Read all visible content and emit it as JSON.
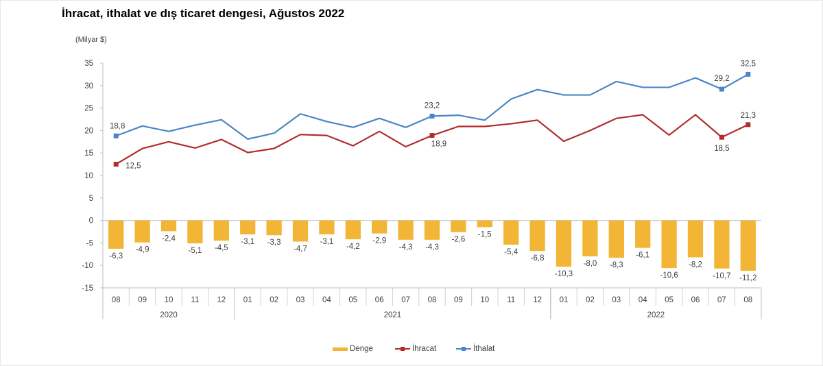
{
  "title": "İhracat, ithalat ve dış ticaret dengesi, Ağustos 2022",
  "chart_data": {
    "type": "bar+line",
    "ylabel": "(Milyar $)",
    "ylim": [
      -15,
      35
    ],
    "yticks": [
      35,
      30,
      25,
      20,
      15,
      10,
      5,
      0,
      -5,
      -10,
      -15
    ],
    "categories": [
      "08",
      "09",
      "10",
      "11",
      "12",
      "01",
      "02",
      "03",
      "04",
      "05",
      "06",
      "07",
      "08",
      "09",
      "10",
      "11",
      "12",
      "01",
      "02",
      "03",
      "04",
      "05",
      "06",
      "07",
      "08"
    ],
    "years": [
      {
        "label": "2020",
        "start": 0,
        "end": 4
      },
      {
        "label": "2021",
        "start": 5,
        "end": 16
      },
      {
        "label": "2022",
        "start": 17,
        "end": 24
      }
    ],
    "series": [
      {
        "name": "Denge",
        "type": "bar",
        "color": "#f2b535",
        "values": [
          -6.3,
          -4.9,
          -2.4,
          -5.1,
          -4.5,
          -3.1,
          -3.3,
          -4.7,
          -3.1,
          -4.2,
          -2.9,
          -4.3,
          -4.3,
          -2.6,
          -1.5,
          -5.4,
          -6.8,
          -10.3,
          -8.0,
          -8.3,
          -6.1,
          -10.6,
          -8.2,
          -10.7,
          -11.2
        ],
        "labels": [
          "-6,3",
          "-4,9",
          "-2,4",
          "-5,1",
          "-4,5",
          "-3,1",
          "-3,3",
          "-4,7",
          "-3,1",
          "-4,2",
          "-2,9",
          "-4,3",
          "-4,3",
          "-2,6",
          "-1,5",
          "-5,4",
          "-6,8",
          "-10,3",
          "-8,0",
          "-8,3",
          "-6,1",
          "-10,6",
          "-8,2",
          "-10,7",
          "-11,2"
        ]
      },
      {
        "name": "İhracat",
        "type": "line",
        "color": "#b22b2b",
        "values": [
          12.5,
          16.0,
          17.5,
          16.1,
          18.0,
          15.1,
          16.0,
          19.1,
          18.9,
          16.6,
          19.8,
          16.4,
          18.9,
          20.9,
          20.9,
          21.5,
          22.3,
          17.6,
          20.0,
          22.7,
          23.5,
          19.0,
          23.5,
          18.5,
          21.3
        ],
        "marked": [
          0,
          12,
          23,
          24
        ],
        "annotations": [
          {
            "i": 0,
            "text": "12,5"
          },
          {
            "i": 12,
            "text": "18,9"
          },
          {
            "i": 23,
            "text": "18,5"
          },
          {
            "i": 24,
            "text": "21,3"
          }
        ]
      },
      {
        "name": "İthalat",
        "type": "line",
        "color": "#4a86c5",
        "values": [
          18.8,
          21.0,
          19.8,
          21.2,
          22.4,
          18.1,
          19.4,
          23.7,
          22.0,
          20.7,
          22.7,
          20.7,
          23.2,
          23.4,
          22.3,
          27.0,
          29.1,
          27.9,
          27.9,
          30.9,
          29.6,
          29.6,
          31.7,
          29.2,
          32.5
        ],
        "marked": [
          0,
          12,
          23,
          24
        ],
        "annotations": [
          {
            "i": 0,
            "text": "18,8"
          },
          {
            "i": 12,
            "text": "23,2"
          },
          {
            "i": 23,
            "text": "29,2"
          },
          {
            "i": 24,
            "text": "32,5"
          }
        ]
      }
    ],
    "legend": [
      "Denge",
      "İhracat",
      "İthalat"
    ],
    "legend_position": "bottom"
  }
}
